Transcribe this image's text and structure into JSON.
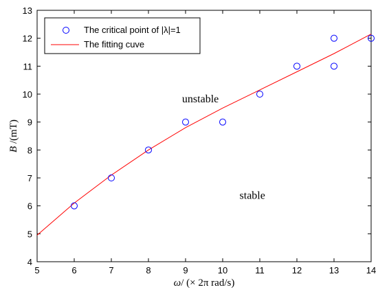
{
  "chart_data": {
    "type": "scatter",
    "xlabel": {
      "symbol": "ω",
      "rest": "/ (× 2π rad/s)"
    },
    "ylabel": {
      "symbol": "B",
      "rest": " /(mT)"
    },
    "xlim": [
      5,
      14
    ],
    "ylim": [
      4,
      13
    ],
    "xticks": [
      "5",
      "6",
      "7",
      "8",
      "9",
      "10",
      "11",
      "12",
      "13",
      "14"
    ],
    "yticks": [
      "4",
      "5",
      "6",
      "7",
      "8",
      "9",
      "10",
      "11",
      "12",
      "13"
    ],
    "grid": false,
    "legend_position": "top-left",
    "series": [
      {
        "name": "The critical point of |λ|=1",
        "marker": "circle",
        "color": "#0000ff",
        "points": [
          [
            6,
            6
          ],
          [
            7,
            7
          ],
          [
            8,
            8
          ],
          [
            9,
            9
          ],
          [
            10,
            9
          ],
          [
            11,
            10
          ],
          [
            12,
            11
          ],
          [
            13,
            12
          ],
          [
            13,
            11
          ],
          [
            14,
            12
          ]
        ]
      },
      {
        "name": "The fitting cuve",
        "line": true,
        "color": "#ff0000",
        "x": [
          5,
          6,
          7,
          8,
          9,
          10,
          11,
          12,
          13,
          14
        ],
        "y": [
          4.95,
          6.1,
          7.1,
          8.0,
          8.8,
          9.5,
          10.15,
          10.8,
          11.45,
          12.15
        ]
      }
    ],
    "annotations": [
      {
        "text": "unstable",
        "x": 9.4,
        "y": 9.7
      },
      {
        "text": "stable",
        "x": 10.8,
        "y": 6.25
      }
    ]
  }
}
